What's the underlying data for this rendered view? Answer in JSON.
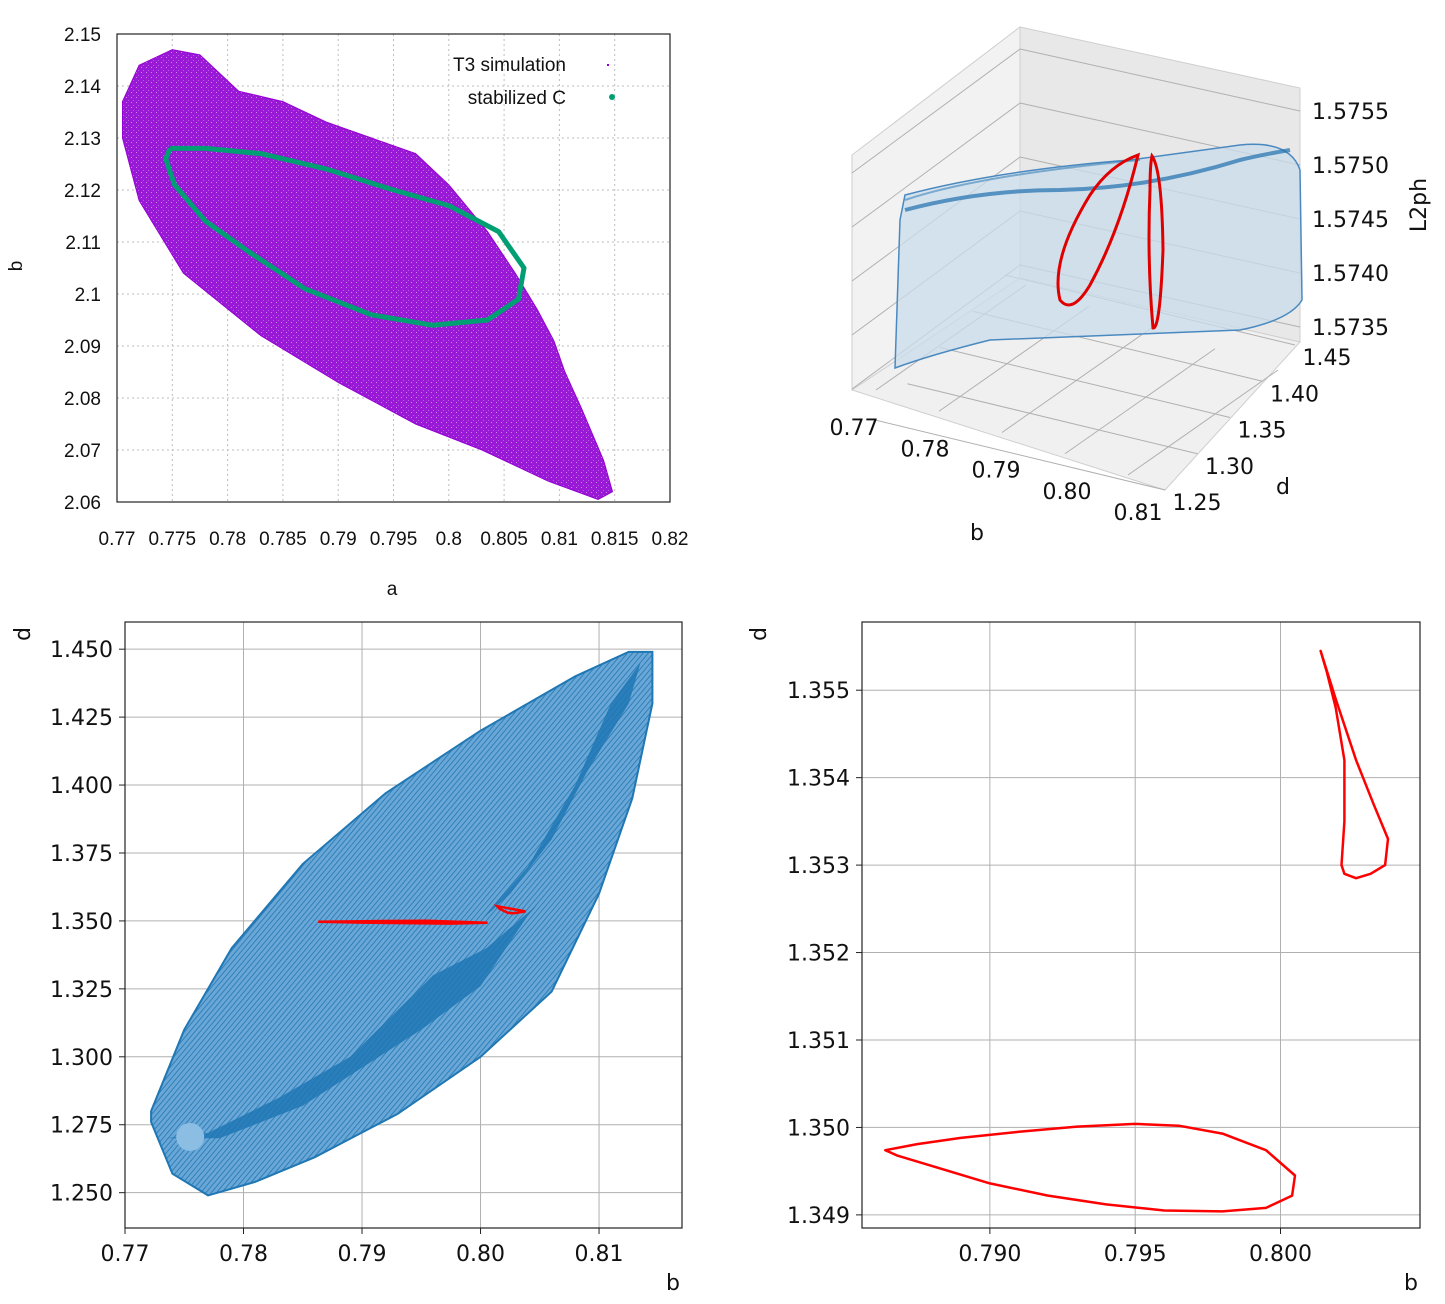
{
  "colors": {
    "t3": "#9400d3",
    "stabilized": "#009e73",
    "surface": "#1f77b4",
    "curve": "#ff0000",
    "grid": "#b0b0b0"
  },
  "chart_data": [
    {
      "id": "top-left",
      "type": "scatter",
      "xlabel": "a",
      "ylabel": "b",
      "xlim": [
        0.77,
        0.82
      ],
      "ylim": [
        2.06,
        2.15
      ],
      "xticks": [
        "0.77",
        "0.775",
        "0.78",
        "0.785",
        "0.79",
        "0.795",
        "0.8",
        "0.805",
        "0.81",
        "0.815",
        "0.82"
      ],
      "yticks": [
        "2.06",
        "2.07",
        "2.08",
        "2.09",
        "2.1",
        "2.11",
        "2.12",
        "2.13",
        "2.14",
        "2.15"
      ],
      "legend": [
        "T3 simulation",
        "stabilized C"
      ],
      "series": [
        {
          "name": "T3 simulation",
          "style": "filled region of points",
          "outline": [
            [
              0.7705,
              2.137
            ],
            [
              0.772,
              2.144
            ],
            [
              0.775,
              2.147
            ],
            [
              0.7775,
              2.146
            ],
            [
              0.781,
              2.139
            ],
            [
              0.785,
              2.137
            ],
            [
              0.789,
              2.133
            ],
            [
              0.793,
              2.13
            ],
            [
              0.797,
              2.127
            ],
            [
              0.8,
              2.121
            ],
            [
              0.8035,
              2.112
            ],
            [
              0.806,
              2.104
            ],
            [
              0.808,
              2.097
            ],
            [
              0.8095,
              2.091
            ],
            [
              0.81,
              2.088
            ],
            [
              0.8105,
              2.085
            ],
            [
              0.812,
              2.078
            ],
            [
              0.814,
              2.068
            ],
            [
              0.8148,
              2.062
            ],
            [
              0.8135,
              2.0605
            ],
            [
              0.809,
              2.064
            ],
            [
              0.803,
              2.07
            ],
            [
              0.797,
              2.075
            ],
            [
              0.79,
              2.083
            ],
            [
              0.783,
              2.092
            ],
            [
              0.776,
              2.104
            ],
            [
              0.772,
              2.118
            ],
            [
              0.7705,
              2.13
            ]
          ]
        },
        {
          "name": "stabilized C",
          "style": "closed curve",
          "points": [
            [
              0.7748,
              2.128
            ],
            [
              0.778,
              2.128
            ],
            [
              0.783,
              2.127
            ],
            [
              0.789,
              2.124
            ],
            [
              0.795,
              2.12
            ],
            [
              0.8,
              2.117
            ],
            [
              0.8045,
              2.112
            ],
            [
              0.8068,
              2.105
            ],
            [
              0.8063,
              2.099
            ],
            [
              0.8035,
              2.095
            ],
            [
              0.7985,
              2.094
            ],
            [
              0.793,
              2.096
            ],
            [
              0.787,
              2.101
            ],
            [
              0.782,
              2.108
            ],
            [
              0.778,
              2.114
            ],
            [
              0.7752,
              2.121
            ],
            [
              0.7744,
              2.126
            ],
            [
              0.7748,
              2.128
            ]
          ]
        }
      ]
    },
    {
      "id": "top-right",
      "type": "scatter",
      "projection": "3d",
      "xlabel": "b",
      "ylabel": "d",
      "zlabel": "L2ph",
      "xlim": [
        0.77,
        0.815
      ],
      "ylim": [
        1.25,
        1.45
      ],
      "zlim": [
        1.5735,
        1.5755
      ],
      "xticks": [
        "0.77",
        "0.78",
        "0.79",
        "0.80",
        "0.81"
      ],
      "yticks": [
        "1.25",
        "1.30",
        "1.35",
        "1.40",
        "1.45"
      ],
      "zticks": [
        "1.5735",
        "1.5740",
        "1.5745",
        "1.5750",
        "1.5755"
      ],
      "series": [
        {
          "name": "surface",
          "style": "translucent blue surface"
        },
        {
          "name": "stabilized curve",
          "style": "red closed curves",
          "curves": 2
        }
      ]
    },
    {
      "id": "bottom-left",
      "type": "scatter",
      "xlabel": "b",
      "ylabel": "d",
      "xlim": [
        0.77,
        0.817
      ],
      "ylim": [
        1.237,
        1.46
      ],
      "xticks": [
        "0.77",
        "0.78",
        "0.79",
        "0.80",
        "0.81"
      ],
      "xtick_values": [
        0.77,
        0.78,
        0.79,
        0.8,
        0.81
      ],
      "yticks": [
        "1.250",
        "1.275",
        "1.300",
        "1.325",
        "1.350",
        "1.375",
        "1.400",
        "1.425",
        "1.450"
      ],
      "ytick_values": [
        1.25,
        1.275,
        1.3,
        1.325,
        1.35,
        1.375,
        1.4,
        1.425,
        1.45
      ],
      "series": [
        {
          "name": "surface projection",
          "outline": [
            [
              0.7722,
              1.276
            ],
            [
              0.774,
              1.257
            ],
            [
              0.777,
              1.249
            ],
            [
              0.781,
              1.254
            ],
            [
              0.786,
              1.263
            ],
            [
              0.793,
              1.279
            ],
            [
              0.8,
              1.3
            ],
            [
              0.806,
              1.324
            ],
            [
              0.81,
              1.36
            ],
            [
              0.8128,
              1.395
            ],
            [
              0.8145,
              1.43
            ],
            [
              0.8145,
              1.449
            ],
            [
              0.8125,
              1.449
            ],
            [
              0.808,
              1.44
            ],
            [
              0.8,
              1.42
            ],
            [
              0.792,
              1.397
            ],
            [
              0.785,
              1.371
            ],
            [
              0.779,
              1.34
            ],
            [
              0.775,
              1.31
            ],
            [
              0.7722,
              1.28
            ]
          ]
        },
        {
          "name": "stabilized curve",
          "curves": [
            [
              [
                0.7863,
                1.3497
              ],
              [
                0.79,
                1.3499
              ],
              [
                0.7955,
                1.3501
              ],
              [
                0.8006,
                1.3493
              ],
              [
                0.7975,
                1.349
              ],
              [
                0.79,
                1.3494
              ],
              [
                0.7863,
                1.3497
              ]
            ],
            [
              [
                0.8014,
                1.3554
              ],
              [
                0.8032,
                1.354
              ],
              [
                0.8038,
                1.3535
              ],
              [
                0.8028,
                1.3528
              ],
              [
                0.8023,
                1.353
              ],
              [
                0.8016,
                1.3545
              ],
              [
                0.8014,
                1.3554
              ]
            ]
          ]
        }
      ]
    },
    {
      "id": "bottom-right",
      "type": "line",
      "xlabel": "b",
      "ylabel": "d",
      "xlim": [
        0.7856,
        0.8048
      ],
      "ylim": [
        1.34885,
        1.35578
      ],
      "xticks": [
        "0.790",
        "0.795",
        "0.800"
      ],
      "xtick_values": [
        0.79,
        0.795,
        0.8
      ],
      "yticks": [
        "1.349",
        "1.350",
        "1.351",
        "1.352",
        "1.353",
        "1.354",
        "1.355"
      ],
      "ytick_values": [
        1.349,
        1.35,
        1.351,
        1.352,
        1.353,
        1.354,
        1.355
      ],
      "series": [
        {
          "name": "lower loop",
          "points": [
            [
              0.7864,
              1.34974
            ],
            [
              0.7875,
              1.34981
            ],
            [
              0.789,
              1.34988
            ],
            [
              0.791,
              1.34995
            ],
            [
              0.793,
              1.35001
            ],
            [
              0.795,
              1.35004
            ],
            [
              0.7965,
              1.35002
            ],
            [
              0.798,
              1.34993
            ],
            [
              0.7995,
              1.34974
            ],
            [
              0.8005,
              1.34945
            ],
            [
              0.8004,
              1.34922
            ],
            [
              0.7995,
              1.34908
            ],
            [
              0.798,
              1.34904
            ],
            [
              0.796,
              1.34905
            ],
            [
              0.794,
              1.34912
            ],
            [
              0.792,
              1.34922
            ],
            [
              0.79,
              1.34936
            ],
            [
              0.788,
              1.34956
            ],
            [
              0.7868,
              1.34968
            ],
            [
              0.7864,
              1.34974
            ]
          ]
        },
        {
          "name": "upper loop",
          "points": [
            [
              0.80138,
              1.35545
            ],
            [
              0.8019,
              1.3549
            ],
            [
              0.8026,
              1.3542
            ],
            [
              0.8032,
              1.3537
            ],
            [
              0.8037,
              1.3533
            ],
            [
              0.8036,
              1.353
            ],
            [
              0.8031,
              1.3529
            ],
            [
              0.8026,
              1.35285
            ],
            [
              0.8022,
              1.3529
            ],
            [
              0.8021,
              1.353
            ],
            [
              0.8022,
              1.3535
            ],
            [
              0.8022,
              1.3542
            ],
            [
              0.8019,
              1.3548
            ],
            [
              0.8016,
              1.3552
            ],
            [
              0.80138,
              1.35545
            ]
          ]
        }
      ]
    }
  ]
}
